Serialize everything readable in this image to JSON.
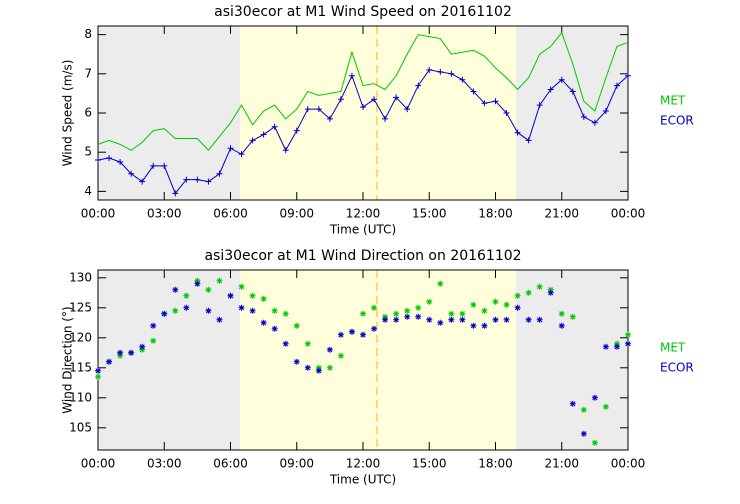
{
  "chart_data": [
    {
      "type": "line",
      "title": "asi30ecor at M1 Wind Speed on 20161102",
      "xlabel": "Time (UTC)",
      "ylabel": "Wind Speed (m/s)",
      "x": [
        0,
        0.5,
        1,
        1.5,
        2,
        2.5,
        3,
        3.5,
        4,
        4.5,
        5,
        5.5,
        6,
        6.5,
        7,
        7.5,
        8,
        8.5,
        9,
        9.5,
        10,
        10.5,
        11,
        11.5,
        12,
        12.5,
        13,
        13.5,
        14,
        14.5,
        15,
        15.5,
        16,
        16.5,
        17,
        17.5,
        18,
        18.5,
        19,
        19.5,
        20,
        20.5,
        21,
        21.5,
        22,
        22.5,
        23,
        23.5,
        24
      ],
      "series": [
        {
          "name": "MET",
          "color": "#00c800",
          "values": [
            5.2,
            5.3,
            5.2,
            5.05,
            5.25,
            5.55,
            5.6,
            5.35,
            5.35,
            5.35,
            5.05,
            5.4,
            5.75,
            6.2,
            5.7,
            6.05,
            6.2,
            5.85,
            6.1,
            6.55,
            6.45,
            6.5,
            6.55,
            7.55,
            6.7,
            6.75,
            6.6,
            6.95,
            7.5,
            8.0,
            7.95,
            7.9,
            7.5,
            7.55,
            7.6,
            7.45,
            7.15,
            6.9,
            6.6,
            6.9,
            7.5,
            7.7,
            8.05,
            7.25,
            6.3,
            6.05,
            6.9,
            7.7,
            7.8
          ]
        },
        {
          "name": "ECOR",
          "color": "#0000c8",
          "marker": "plus",
          "values": [
            4.8,
            4.85,
            4.75,
            4.45,
            4.25,
            4.65,
            4.65,
            3.95,
            4.3,
            4.3,
            4.25,
            4.45,
            5.1,
            4.95,
            5.3,
            5.45,
            5.65,
            5.05,
            5.55,
            6.1,
            6.1,
            5.85,
            6.35,
            6.95,
            6.15,
            6.35,
            5.85,
            6.4,
            6.1,
            6.7,
            7.1,
            7.05,
            7.0,
            6.85,
            6.55,
            6.25,
            6.3,
            6.0,
            5.5,
            5.3,
            6.2,
            6.6,
            6.85,
            6.55,
            5.9,
            5.75,
            6.05,
            6.7,
            6.95
          ]
        }
      ],
      "xlim": [
        0,
        24
      ],
      "xticks": [
        {
          "value": 0,
          "label": "00:00"
        },
        {
          "value": 3,
          "label": "03:00"
        },
        {
          "value": 6,
          "label": "06:00"
        },
        {
          "value": 9,
          "label": "09:00"
        },
        {
          "value": 12,
          "label": "12:00"
        },
        {
          "value": 15,
          "label": "15:00"
        },
        {
          "value": 18,
          "label": "18:00"
        },
        {
          "value": 21,
          "label": "21:00"
        },
        {
          "value": 24,
          "label": "00:00"
        }
      ],
      "ylim": [
        3.78,
        8.22
      ],
      "yticks": [
        4,
        5,
        6,
        7,
        8
      ],
      "shaded_spans": [
        {
          "x": [
            0,
            6.43
          ],
          "color": "#ececec"
        },
        {
          "x": [
            6.43,
            18.93
          ],
          "color": "#ffffdc"
        },
        {
          "x": [
            18.93,
            24
          ],
          "color": "#ececec"
        }
      ],
      "vline": {
        "x": 12.63,
        "color": "#ffd040"
      }
    },
    {
      "type": "scatter",
      "title": "asi30ecor at M1 Wind Direction on 20161102",
      "xlabel": "Time (UTC)",
      "ylabel": "Wind Direction (°)",
      "x": [
        0,
        0.5,
        1,
        1.5,
        2,
        2.5,
        3,
        3.5,
        4,
        4.5,
        5,
        5.5,
        6,
        6.5,
        7,
        7.5,
        8,
        8.5,
        9,
        9.5,
        10,
        10.5,
        11,
        11.5,
        12,
        12.5,
        13,
        13.5,
        14,
        14.5,
        15,
        15.5,
        16,
        16.5,
        17,
        17.5,
        18,
        18.5,
        19,
        19.5,
        20,
        20.5,
        21,
        21.5,
        22,
        22.5,
        23,
        23.5,
        24
      ],
      "series": [
        {
          "name": "MET",
          "color": "#00c800",
          "values": [
            113.5,
            116,
            117,
            117.5,
            118,
            119.5,
            124,
            124.5,
            127,
            129.5,
            128,
            129.5,
            127,
            128.5,
            127,
            126.5,
            124.5,
            124,
            122,
            119,
            115,
            115,
            117,
            121,
            124,
            125,
            123.5,
            124,
            124.5,
            125,
            126,
            129,
            124,
            124,
            125.5,
            124.5,
            126,
            125.5,
            127,
            127.5,
            128.5,
            128,
            124,
            123.5,
            108,
            102.5,
            108.5,
            119,
            120.5
          ]
        },
        {
          "name": "ECOR",
          "color": "#0000c8",
          "values": [
            114.5,
            116,
            117.5,
            117.5,
            118.5,
            122,
            124,
            128,
            125,
            129,
            124.5,
            123,
            127,
            125,
            124.5,
            122.5,
            121.5,
            119,
            116,
            115,
            114.5,
            118,
            120.5,
            121,
            120.5,
            121.5,
            123,
            123,
            123.5,
            123.5,
            123,
            122.5,
            123,
            123,
            122,
            122,
            123,
            123,
            125,
            123,
            123,
            127.5,
            122,
            109,
            104,
            110,
            118.5,
            118.5,
            119
          ]
        }
      ],
      "xlim": [
        0,
        24
      ],
      "xticks": [
        {
          "value": 0,
          "label": "00:00"
        },
        {
          "value": 3,
          "label": "03:00"
        },
        {
          "value": 6,
          "label": "06:00"
        },
        {
          "value": 9,
          "label": "09:00"
        },
        {
          "value": 12,
          "label": "12:00"
        },
        {
          "value": 15,
          "label": "15:00"
        },
        {
          "value": 18,
          "label": "18:00"
        },
        {
          "value": 21,
          "label": "21:00"
        },
        {
          "value": 24,
          "label": "00:00"
        }
      ],
      "ylim": [
        101.3,
        131.3
      ],
      "yticks": [
        105,
        110,
        115,
        120,
        125,
        130
      ],
      "shaded_spans": [
        {
          "x": [
            0,
            6.43
          ],
          "color": "#ececec"
        },
        {
          "x": [
            6.43,
            18.93
          ],
          "color": "#ffffdc"
        },
        {
          "x": [
            18.93,
            24
          ],
          "color": "#ececec"
        }
      ],
      "vline": {
        "x": 12.63,
        "color": "#ffd040"
      }
    }
  ]
}
